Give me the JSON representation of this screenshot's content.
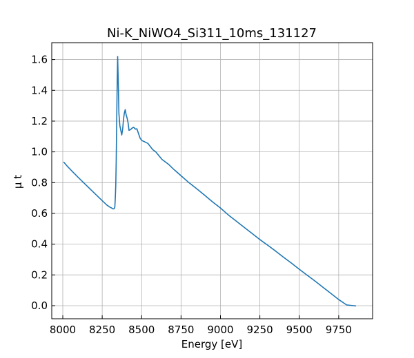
{
  "chart_data": {
    "type": "line",
    "title": "Ni-K_NiWO4_Si311_10ms_131127",
    "xlabel": "Energy [eV]",
    "ylabel": "μ t",
    "xlim": [
      7930,
      9965
    ],
    "ylim": [
      -0.085,
      1.71
    ],
    "xticks": [
      8000,
      8250,
      8500,
      8750,
      9000,
      9250,
      9500,
      9750
    ],
    "xtick_labels": [
      "8000",
      "8250",
      "8500",
      "8750",
      "9000",
      "9250",
      "9500",
      "9750"
    ],
    "yticks": [
      0.0,
      0.2,
      0.4,
      0.6,
      0.8,
      1.0,
      1.2,
      1.4,
      1.6
    ],
    "ytick_labels": [
      "0.0",
      "0.2",
      "0.4",
      "0.6",
      "0.8",
      "1.0",
      "1.2",
      "1.4",
      "1.6"
    ],
    "grid": true,
    "series": [
      {
        "color": "#1f77b4",
        "x": [
          8005,
          8030,
          8060,
          8100,
          8150,
          8200,
          8250,
          8280,
          8300,
          8310,
          8318,
          8325,
          8330,
          8333,
          8336,
          8339,
          8342,
          8345,
          8348,
          8352,
          8356,
          8362,
          8368,
          8374,
          8380,
          8385,
          8390,
          8396,
          8402,
          8408,
          8414,
          8420,
          8430,
          8440,
          8450,
          8460,
          8470,
          8480,
          8490,
          8500,
          8510,
          8520,
          8540,
          8555,
          8570,
          8590,
          8610,
          8630,
          8650,
          8670,
          8700,
          8750,
          8800,
          8850,
          8900,
          8950,
          9000,
          9050,
          9100,
          9150,
          9200,
          9250,
          9300,
          9350,
          9400,
          9450,
          9500,
          9550,
          9600,
          9650,
          9700,
          9750,
          9800,
          9860
        ],
        "y": [
          0.935,
          0.905,
          0.873,
          0.832,
          0.782,
          0.732,
          0.683,
          0.654,
          0.64,
          0.635,
          0.63,
          0.63,
          0.64,
          0.7,
          0.78,
          0.95,
          1.2,
          1.45,
          1.62,
          1.45,
          1.25,
          1.17,
          1.14,
          1.11,
          1.15,
          1.21,
          1.25,
          1.275,
          1.24,
          1.22,
          1.19,
          1.14,
          1.145,
          1.155,
          1.16,
          1.148,
          1.15,
          1.12,
          1.09,
          1.075,
          1.07,
          1.065,
          1.055,
          1.035,
          1.015,
          1.0,
          0.975,
          0.95,
          0.935,
          0.92,
          0.89,
          0.845,
          0.8,
          0.76,
          0.718,
          0.675,
          0.635,
          0.59,
          0.55,
          0.51,
          0.47,
          0.43,
          0.393,
          0.355,
          0.315,
          0.277,
          0.237,
          0.198,
          0.16,
          0.12,
          0.08,
          0.04,
          0.005,
          -0.002
        ]
      }
    ]
  }
}
